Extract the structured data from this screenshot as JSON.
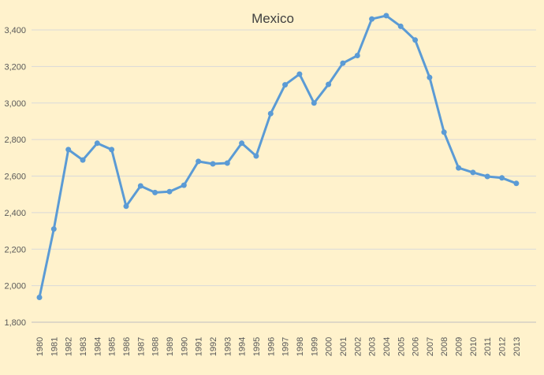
{
  "chart_data": {
    "type": "line",
    "title": "Mexico",
    "xlabel": "",
    "ylabel": "",
    "x": [
      "1980",
      "1981",
      "1982",
      "1983",
      "1984",
      "1985",
      "1986",
      "1987",
      "1988",
      "1989",
      "1990",
      "1991",
      "1992",
      "1993",
      "1994",
      "1995",
      "1996",
      "1997",
      "1998",
      "1999",
      "2000",
      "2001",
      "2002",
      "2003",
      "2004",
      "2005",
      "2006",
      "2007",
      "2008",
      "2009",
      "2010",
      "2011",
      "2012",
      "2013"
    ],
    "series": [
      {
        "values": [
          1936,
          2310,
          2745,
          2688,
          2780,
          2745,
          2435,
          2546,
          2510,
          2515,
          2550,
          2680,
          2667,
          2671,
          2780,
          2710,
          2942,
          3100,
          3158,
          3000,
          3102,
          3218,
          3260,
          3460,
          3478,
          3420,
          3345,
          3140,
          2840,
          2645,
          2620,
          2598,
          2590,
          2560
        ],
        "color": "#5b9bd5"
      }
    ],
    "ylim": [
      1800,
      3500
    ],
    "yticks": [
      "1,800",
      "2,000",
      "2,200",
      "2,400",
      "2,600",
      "2,800",
      "3,000",
      "3,200",
      "3,400"
    ],
    "grid": "horizontal",
    "legend": "none"
  }
}
